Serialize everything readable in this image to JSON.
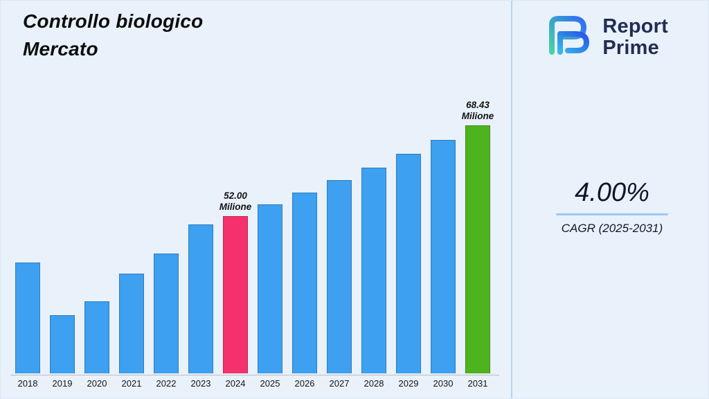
{
  "page": {
    "title_line1": "Controllo biologico",
    "title_line2": "Mercato"
  },
  "logo": {
    "line1": "Report",
    "line2": "Prime"
  },
  "stats": {
    "cagr_value": "4.00%",
    "cagr_label": "CAGR (2025-2031)"
  },
  "colors": {
    "background": "#e9f1fb",
    "bar_default": "#3da0f0",
    "bar_highlight_current": "#f4316d",
    "bar_highlight_forecast": "#4db31f",
    "accent_underline": "#9cc7f0",
    "brand_navy": "#222d52",
    "logo_gradient_start": "#47d3a4",
    "logo_gradient_end": "#2f6df6"
  },
  "chart_data": {
    "type": "bar",
    "title": "Controllo biologico Mercato",
    "unit": "Milione",
    "categories": [
      "2018",
      "2019",
      "2020",
      "2021",
      "2022",
      "2023",
      "2024",
      "2025",
      "2026",
      "2027",
      "2028",
      "2029",
      "2030",
      "2031"
    ],
    "values": [
      43.6,
      34.0,
      36.5,
      41.5,
      45.2,
      50.5,
      52.0,
      54.08,
      56.24,
      58.49,
      60.83,
      63.27,
      65.8,
      68.43
    ],
    "value_labels": {
      "2024": [
        "52.00",
        "Milione"
      ],
      "2031": [
        "68.43",
        "Milione"
      ]
    },
    "highlighted_bars": {
      "2024": "current",
      "2031": "forecast"
    },
    "xlabel": "",
    "ylabel": "",
    "ylim": [
      23.4,
      70
    ],
    "grid": false,
    "legend": false
  }
}
